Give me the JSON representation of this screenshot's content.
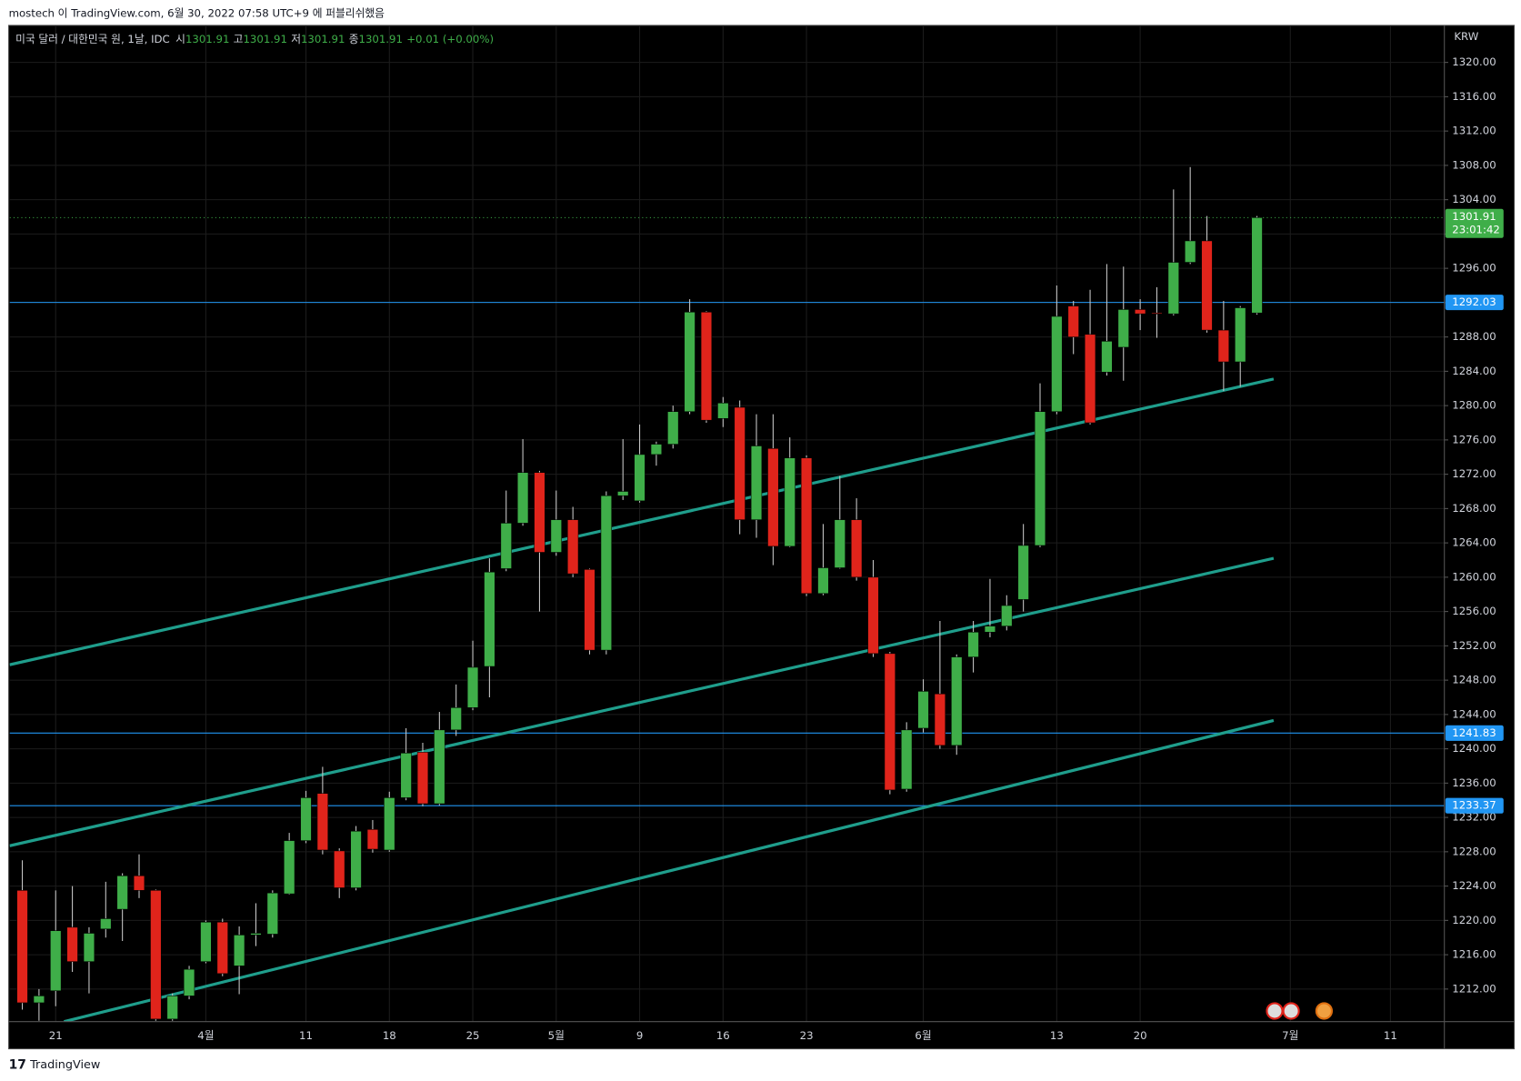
{
  "header": "mostech 이 TradingView.com, 6월 30, 2022 07:58 UTC+9 에 퍼블리쉬했음",
  "footer": "TradingView",
  "chart_data": {
    "type": "candlestick",
    "symbol": "미국 달러 / 대한민국 원, 1날, IDC",
    "legend_ohlc": [
      {
        "label": "시",
        "value": 1301.91
      },
      {
        "label": "고",
        "value": 1301.91
      },
      {
        "label": "저",
        "value": 1301.91
      },
      {
        "label": "종",
        "value": 1301.91
      }
    ],
    "change": "+0.01 (+0.00%)",
    "currency": "KRW",
    "up_color": "#3fae49",
    "down_color": "#e0241b",
    "line_color": "#1f9e8c",
    "level_color": "#2196f3",
    "grid": true,
    "ylim": [
      1208.2,
      1324.2
    ],
    "yticks": [
      {
        "value": 1212,
        "label": "1212.00"
      },
      {
        "value": 1216,
        "label": "1216.00"
      },
      {
        "value": 1220,
        "label": "1220.00"
      },
      {
        "value": 1224,
        "label": "1224.00"
      },
      {
        "value": 1228,
        "label": "1228.00"
      },
      {
        "value": 1232,
        "label": "1232.00"
      },
      {
        "value": 1236,
        "label": "1236.00"
      },
      {
        "value": 1240,
        "label": "1240.00"
      },
      {
        "value": 1244,
        "label": "1244.00"
      },
      {
        "value": 1248,
        "label": "1248.00"
      },
      {
        "value": 1252,
        "label": "1252.00"
      },
      {
        "value": 1256,
        "label": "1256.00"
      },
      {
        "value": 1260,
        "label": "1260.00"
      },
      {
        "value": 1264,
        "label": "1264.00"
      },
      {
        "value": 1268,
        "label": "1268.00"
      },
      {
        "value": 1272,
        "label": "1272.00"
      },
      {
        "value": 1276,
        "label": "1276.00"
      },
      {
        "value": 1280,
        "label": "1280.00"
      },
      {
        "value": 1284,
        "label": "1284.00"
      },
      {
        "value": 1288,
        "label": "1288.00"
      },
      {
        "value": 1292,
        "label": "1292.00"
      },
      {
        "value": 1296,
        "label": "1296.00"
      },
      {
        "value": 1300,
        "label": "1300.00"
      },
      {
        "value": 1304,
        "label": "1304.00"
      },
      {
        "value": 1308,
        "label": "1308.00"
      },
      {
        "value": 1312,
        "label": "1312.00"
      },
      {
        "value": 1316,
        "label": "1316.00"
      },
      {
        "value": 1320,
        "label": "1320.00"
      }
    ],
    "categories": [
      null,
      null,
      "21",
      null,
      null,
      null,
      null,
      null,
      null,
      null,
      null,
      "4월",
      null,
      null,
      null,
      null,
      null,
      "11",
      null,
      null,
      null,
      null,
      "18",
      null,
      null,
      null,
      null,
      "25",
      null,
      null,
      null,
      null,
      "5월",
      null,
      null,
      null,
      null,
      "9",
      null,
      null,
      null,
      null,
      "16",
      null,
      null,
      null,
      null,
      "23",
      null,
      null,
      null,
      null,
      null,
      null,
      "6월",
      null,
      null,
      null,
      null,
      null,
      null,
      null,
      "13",
      null,
      null,
      null,
      null,
      "20",
      null,
      null,
      null,
      null,
      null,
      null,
      null,
      null,
      "7월",
      null,
      null,
      null,
      null,
      null,
      "11"
    ],
    "ohlc": [
      [
        1223.5,
        1227,
        1209.6,
        1210.4
      ],
      [
        1210.4,
        1212,
        1208.3,
        1211.2
      ],
      [
        1211.8,
        1223.5,
        1210,
        1218.8
      ],
      [
        1219.2,
        1224,
        1214,
        1215.2
      ],
      [
        1215.2,
        1219.2,
        1211.5,
        1218.5
      ],
      [
        1219,
        1224.5,
        1218,
        1220.2
      ],
      [
        1221.3,
        1225.5,
        1217.6,
        1225.2
      ],
      [
        1225.2,
        1227.7,
        1222.6,
        1223.5
      ],
      [
        1223.5,
        1223.6,
        1208.3,
        1208.5
      ],
      [
        1208.5,
        1211.5,
        1208.3,
        1211.2
      ],
      [
        1211.2,
        1214.7,
        1210.8,
        1214.3
      ],
      [
        1215.2,
        1220,
        1215,
        1219.8
      ],
      [
        1219.8,
        1220.2,
        1213.5,
        1213.8
      ],
      [
        1214.7,
        1219.3,
        1211.4,
        1218.3
      ],
      [
        1218.3,
        1222,
        1217,
        1218.5
      ],
      [
        1218.4,
        1223.5,
        1218,
        1223.2
      ],
      [
        1223.1,
        1230.2,
        1223,
        1229.3
      ],
      [
        1229.3,
        1235.1,
        1229,
        1234.3
      ],
      [
        1234.8,
        1237.9,
        1227.7,
        1228.2
      ],
      [
        1228.1,
        1228.4,
        1222.6,
        1223.8
      ],
      [
        1223.8,
        1231,
        1223.5,
        1230.4
      ],
      [
        1230.6,
        1231.7,
        1227.9,
        1228.3
      ],
      [
        1228.2,
        1235,
        1228,
        1234.3
      ],
      [
        1234.3,
        1242.4,
        1234,
        1239.5
      ],
      [
        1239.6,
        1240.7,
        1233.3,
        1233.6
      ],
      [
        1233.6,
        1244.3,
        1233.4,
        1242.2
      ],
      [
        1242.2,
        1247.5,
        1241.5,
        1244.8
      ],
      [
        1244.8,
        1252.6,
        1244.5,
        1249.5
      ],
      [
        1249.6,
        1262.2,
        1246,
        1260.6
      ],
      [
        1261,
        1270.1,
        1260.7,
        1266.3
      ],
      [
        1266.3,
        1276.1,
        1266,
        1272.2
      ],
      [
        1272.2,
        1272.4,
        1256,
        1262.9
      ],
      [
        1262.9,
        1270.1,
        1262.5,
        1266.7
      ],
      [
        1266.7,
        1268.2,
        1260,
        1260.4
      ],
      [
        1260.9,
        1261,
        1251,
        1251.5
      ],
      [
        1251.5,
        1270,
        1251,
        1269.5
      ],
      [
        1269.5,
        1276.1,
        1269,
        1270
      ],
      [
        1268.9,
        1277.8,
        1268.7,
        1274.3
      ],
      [
        1274.3,
        1275.8,
        1273,
        1275.5
      ],
      [
        1275.5,
        1280,
        1275,
        1279.3
      ],
      [
        1279.3,
        1292.4,
        1279,
        1290.9
      ],
      [
        1290.9,
        1291,
        1278,
        1278.3
      ],
      [
        1278.5,
        1281,
        1277.5,
        1280.3
      ],
      [
        1279.8,
        1280.6,
        1265,
        1266.7
      ],
      [
        1266.7,
        1279,
        1264.6,
        1275.3
      ],
      [
        1275,
        1279,
        1261.4,
        1263.6
      ],
      [
        1263.6,
        1276.3,
        1263.5,
        1273.9
      ],
      [
        1273.9,
        1274.2,
        1257.8,
        1258.1
      ],
      [
        1258.1,
        1266.2,
        1257.9,
        1261.1
      ],
      [
        1261.1,
        1271.8,
        1261,
        1266.7
      ],
      [
        1266.7,
        1269.2,
        1259.6,
        1260
      ],
      [
        1260,
        1262,
        1250.7,
        1251.1
      ],
      [
        1251.1,
        1251.3,
        1234.7,
        1235.2
      ],
      [
        1235.3,
        1243.1,
        1235,
        1242.2
      ],
      [
        1242.4,
        1248.1,
        1241.9,
        1246.7
      ],
      [
        1246.4,
        1254.9,
        1240,
        1240.4
      ],
      [
        1240.4,
        1251,
        1239.3,
        1250.7
      ],
      [
        1250.7,
        1254.9,
        1248.9,
        1253.6
      ],
      [
        1253.6,
        1259.8,
        1253,
        1254.3
      ],
      [
        1254.3,
        1257.9,
        1253.8,
        1256.7
      ],
      [
        1257.4,
        1266.2,
        1256,
        1263.7
      ],
      [
        1263.7,
        1282.6,
        1263.5,
        1279.3
      ],
      [
        1279.3,
        1294,
        1279,
        1290.4
      ],
      [
        1291.6,
        1292.2,
        1286,
        1288
      ],
      [
        1288.3,
        1293.5,
        1277.8,
        1278
      ],
      [
        1283.9,
        1296.5,
        1283.5,
        1287.5
      ],
      [
        1286.8,
        1296.2,
        1282.9,
        1291.2
      ],
      [
        1291.2,
        1292.4,
        1288.8,
        1290.7
      ],
      [
        1290.8,
        1293.8,
        1287.9,
        1290.7
      ],
      [
        1290.7,
        1305.2,
        1290.5,
        1296.7
      ],
      [
        1296.7,
        1307.8,
        1296.5,
        1299.2
      ],
      [
        1299.2,
        1302.1,
        1288.5,
        1288.8
      ],
      [
        1288.8,
        1292.2,
        1281.7,
        1285.1
      ],
      [
        1285.1,
        1291.6,
        1282.2,
        1291.4
      ],
      [
        1290.8,
        1302.1,
        1290.6,
        1301.91
      ],
      null,
      null,
      null,
      null,
      null,
      null,
      null,
      null
    ],
    "last_price": 1301.91,
    "countdown": "23:01:42",
    "levels": [
      1292.03,
      1241.83,
      1233.37
    ],
    "trend_lines": [
      {
        "start": [
          -0.76,
          1249.8
        ],
        "end": [
          75,
          1283.1
        ]
      },
      {
        "start": [
          -0.76,
          1228.7
        ],
        "end": [
          75,
          1262.2
        ]
      },
      {
        "start": [
          2.5,
          1208.2
        ],
        "end": [
          75,
          1243.3
        ]
      }
    ]
  }
}
